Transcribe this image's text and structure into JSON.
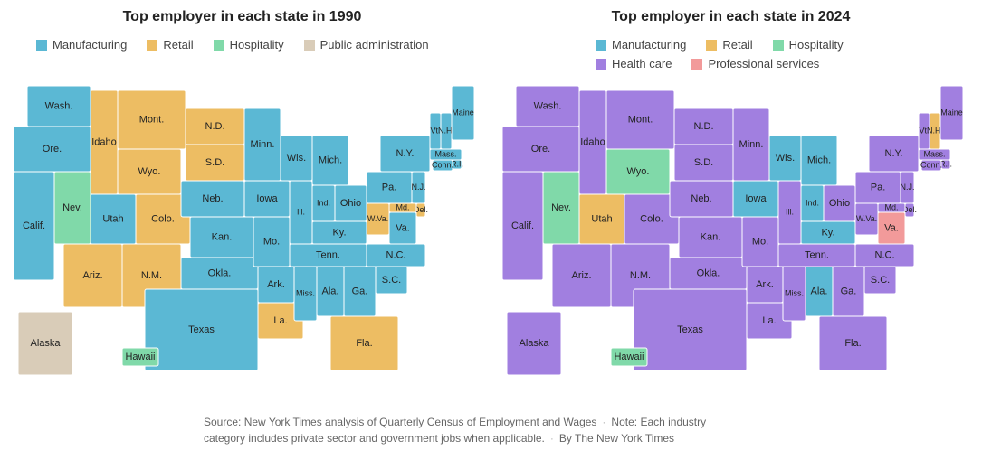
{
  "maps": [
    {
      "title": "Top employer in each state in 1990",
      "legend": [
        {
          "name": "Manufacturing",
          "color": "#5bb8d4"
        },
        {
          "name": "Retail",
          "color": "#edbd63"
        },
        {
          "name": "Hospitality",
          "color": "#80d9a9"
        },
        {
          "name": "Public administration",
          "color": "#d9ccb8"
        }
      ],
      "states": [
        {
          "label": "Wash.",
          "category": "Manufacturing"
        },
        {
          "label": "Ore.",
          "category": "Manufacturing"
        },
        {
          "label": "Calif.",
          "category": "Manufacturing"
        },
        {
          "label": "Idaho",
          "category": "Retail"
        },
        {
          "label": "Nev.",
          "category": "Hospitality"
        },
        {
          "label": "Mont.",
          "category": "Retail"
        },
        {
          "label": "Wyo.",
          "category": "Retail"
        },
        {
          "label": "Utah",
          "category": "Manufacturing"
        },
        {
          "label": "Colo.",
          "category": "Retail"
        },
        {
          "label": "Ariz.",
          "category": "Retail"
        },
        {
          "label": "N.M.",
          "category": "Retail"
        },
        {
          "label": "N.D.",
          "category": "Retail"
        },
        {
          "label": "S.D.",
          "category": "Retail"
        },
        {
          "label": "Neb.",
          "category": "Manufacturing"
        },
        {
          "label": "Kan.",
          "category": "Manufacturing"
        },
        {
          "label": "Okla.",
          "category": "Manufacturing"
        },
        {
          "label": "Texas",
          "category": "Manufacturing"
        },
        {
          "label": "Minn.",
          "category": "Manufacturing"
        },
        {
          "label": "Iowa",
          "category": "Manufacturing"
        },
        {
          "label": "Mo.",
          "category": "Manufacturing"
        },
        {
          "label": "Ark.",
          "category": "Manufacturing"
        },
        {
          "label": "La.",
          "category": "Retail"
        },
        {
          "label": "Wis.",
          "category": "Manufacturing"
        },
        {
          "label": "Ill.",
          "category": "Manufacturing"
        },
        {
          "label": "Mich.",
          "category": "Manufacturing"
        },
        {
          "label": "Ind.",
          "category": "Manufacturing"
        },
        {
          "label": "Ohio",
          "category": "Manufacturing"
        },
        {
          "label": "Ky.",
          "category": "Manufacturing"
        },
        {
          "label": "Tenn.",
          "category": "Manufacturing"
        },
        {
          "label": "Miss.",
          "category": "Manufacturing"
        },
        {
          "label": "Ala.",
          "category": "Manufacturing"
        },
        {
          "label": "Ga.",
          "category": "Manufacturing"
        },
        {
          "label": "Fla.",
          "category": "Retail"
        },
        {
          "label": "S.C.",
          "category": "Manufacturing"
        },
        {
          "label": "N.C.",
          "category": "Manufacturing"
        },
        {
          "label": "Va.",
          "category": "Manufacturing"
        },
        {
          "label": "W.Va.",
          "category": "Retail"
        },
        {
          "label": "Pa.",
          "category": "Manufacturing"
        },
        {
          "label": "N.Y.",
          "category": "Manufacturing"
        },
        {
          "label": "Vt.",
          "category": "Manufacturing"
        },
        {
          "label": "N.H.",
          "category": "Manufacturing"
        },
        {
          "label": "Maine",
          "category": "Manufacturing"
        },
        {
          "label": "Mass.",
          "category": "Manufacturing"
        },
        {
          "label": "R.I.",
          "category": "Manufacturing"
        },
        {
          "label": "Conn.",
          "category": "Manufacturing"
        },
        {
          "label": "N.J.",
          "category": "Manufacturing"
        },
        {
          "label": "Del.",
          "category": "Retail"
        },
        {
          "label": "Md.",
          "category": "Retail"
        },
        {
          "label": "Alaska",
          "category": "Public administration"
        },
        {
          "label": "Hawaii",
          "category": "Hospitality"
        }
      ]
    },
    {
      "title": "Top employer in each state in 2024",
      "legend": [
        {
          "name": "Manufacturing",
          "color": "#5bb8d4"
        },
        {
          "name": "Retail",
          "color": "#edbd63"
        },
        {
          "name": "Hospitality",
          "color": "#80d9a9"
        },
        {
          "name": "Health care",
          "color": "#a17fe0"
        },
        {
          "name": "Professional services",
          "color": "#f29a9a"
        }
      ],
      "states": [
        {
          "label": "Wash.",
          "category": "Health care"
        },
        {
          "label": "Ore.",
          "category": "Health care"
        },
        {
          "label": "Calif.",
          "category": "Health care"
        },
        {
          "label": "Idaho",
          "category": "Health care"
        },
        {
          "label": "Nev.",
          "category": "Hospitality"
        },
        {
          "label": "Mont.",
          "category": "Health care"
        },
        {
          "label": "Wyo.",
          "category": "Hospitality"
        },
        {
          "label": "Utah",
          "category": "Retail"
        },
        {
          "label": "Colo.",
          "category": "Health care"
        },
        {
          "label": "Ariz.",
          "category": "Health care"
        },
        {
          "label": "N.M.",
          "category": "Health care"
        },
        {
          "label": "N.D.",
          "category": "Health care"
        },
        {
          "label": "S.D.",
          "category": "Health care"
        },
        {
          "label": "Neb.",
          "category": "Health care"
        },
        {
          "label": "Kan.",
          "category": "Health care"
        },
        {
          "label": "Okla.",
          "category": "Health care"
        },
        {
          "label": "Texas",
          "category": "Health care"
        },
        {
          "label": "Minn.",
          "category": "Health care"
        },
        {
          "label": "Iowa",
          "category": "Manufacturing"
        },
        {
          "label": "Mo.",
          "category": "Health care"
        },
        {
          "label": "Ark.",
          "category": "Health care"
        },
        {
          "label": "La.",
          "category": "Health care"
        },
        {
          "label": "Wis.",
          "category": "Manufacturing"
        },
        {
          "label": "Ill.",
          "category": "Health care"
        },
        {
          "label": "Mich.",
          "category": "Manufacturing"
        },
        {
          "label": "Ind.",
          "category": "Manufacturing"
        },
        {
          "label": "Ohio",
          "category": "Health care"
        },
        {
          "label": "Ky.",
          "category": "Manufacturing"
        },
        {
          "label": "Tenn.",
          "category": "Health care"
        },
        {
          "label": "Miss.",
          "category": "Health care"
        },
        {
          "label": "Ala.",
          "category": "Manufacturing"
        },
        {
          "label": "Ga.",
          "category": "Health care"
        },
        {
          "label": "Fla.",
          "category": "Health care"
        },
        {
          "label": "S.C.",
          "category": "Health care"
        },
        {
          "label": "N.C.",
          "category": "Health care"
        },
        {
          "label": "Va.",
          "category": "Professional services"
        },
        {
          "label": "W.Va.",
          "category": "Health care"
        },
        {
          "label": "Pa.",
          "category": "Health care"
        },
        {
          "label": "N.Y.",
          "category": "Health care"
        },
        {
          "label": "Vt.",
          "category": "Health care"
        },
        {
          "label": "N.H.",
          "category": "Retail"
        },
        {
          "label": "Maine",
          "category": "Health care"
        },
        {
          "label": "Mass.",
          "category": "Health care"
        },
        {
          "label": "R.I.",
          "category": "Health care"
        },
        {
          "label": "Conn.",
          "category": "Health care"
        },
        {
          "label": "N.J.",
          "category": "Health care"
        },
        {
          "label": "Del.",
          "category": "Health care"
        },
        {
          "label": "Md.",
          "category": "Health care"
        },
        {
          "label": "Alaska",
          "category": "Health care"
        },
        {
          "label": "Hawaii",
          "category": "Hospitality"
        }
      ]
    }
  ],
  "footer": {
    "source": "Source: New York Times analysis of Quarterly Census of Employment and Wages",
    "note": "Note: Each industry category includes private sector and government jobs when applicable.",
    "credit": "By The New York Times"
  }
}
